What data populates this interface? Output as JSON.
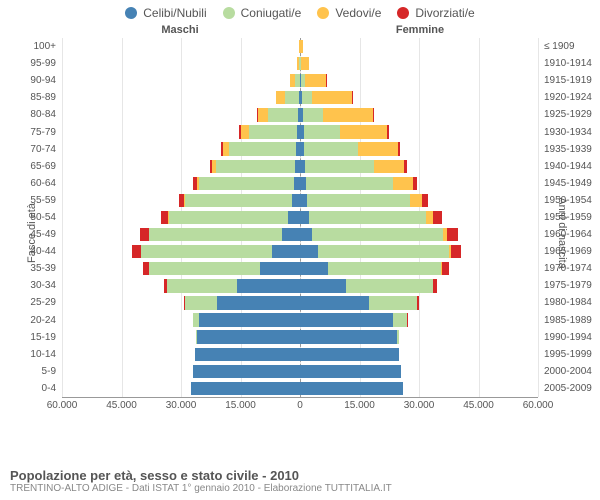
{
  "chart": {
    "type": "population-pyramid",
    "background_color": "#ffffff",
    "grid_color": "#e6e6e6",
    "tick_fontsize": 10,
    "axis_label_fontsize": 11,
    "legend_fontsize": 12,
    "legend": [
      {
        "label": "Celibi/Nubili",
        "color": "#4682b4"
      },
      {
        "label": "Coniugati/e",
        "color": "#b8dca0"
      },
      {
        "label": "Vedovi/e",
        "color": "#ffc34d"
      },
      {
        "label": "Divorziati/e",
        "color": "#d62728"
      }
    ],
    "gender_labels": {
      "left": "Maschi",
      "right": "Femmine"
    },
    "yaxis_left_label": "Fasce di età",
    "yaxis_right_label": "Anni di nascita",
    "xaxis": {
      "max": 60000,
      "ticks": [
        60000,
        45000,
        30000,
        15000,
        0,
        15000,
        30000,
        45000,
        60000
      ],
      "tick_labels": [
        "60.000",
        "45.000",
        "30.000",
        "15.000",
        "0",
        "15.000",
        "30.000",
        "45.000",
        "60.000"
      ]
    },
    "age_groups": [
      "0-4",
      "5-9",
      "10-14",
      "15-19",
      "20-24",
      "25-29",
      "30-34",
      "35-39",
      "40-44",
      "45-49",
      "50-54",
      "55-59",
      "60-64",
      "65-69",
      "70-74",
      "75-79",
      "80-84",
      "85-89",
      "90-94",
      "95-99",
      "100+"
    ],
    "birth_years": [
      "2005-2009",
      "2000-2004",
      "1995-1999",
      "1990-1994",
      "1985-1989",
      "1980-1984",
      "1975-1979",
      "1970-1974",
      "1965-1969",
      "1960-1964",
      "1955-1959",
      "1950-1954",
      "1945-1949",
      "1940-1944",
      "1935-1939",
      "1930-1934",
      "1925-1929",
      "1920-1924",
      "1915-1919",
      "1910-1914",
      "≤ 1909"
    ],
    "data": {
      "male": [
        [
          27500,
          0,
          0,
          0
        ],
        [
          27000,
          0,
          0,
          0
        ],
        [
          26500,
          0,
          0,
          0
        ],
        [
          26000,
          100,
          0,
          0
        ],
        [
          25500,
          1500,
          0,
          50
        ],
        [
          21000,
          8000,
          0,
          200
        ],
        [
          16000,
          17500,
          0,
          700
        ],
        [
          10000,
          28000,
          50,
          1500
        ],
        [
          7000,
          33000,
          100,
          2200
        ],
        [
          4500,
          33500,
          150,
          2300
        ],
        [
          3000,
          30000,
          200,
          1800
        ],
        [
          2000,
          27000,
          300,
          1300
        ],
        [
          1500,
          24000,
          500,
          1000
        ],
        [
          1200,
          20000,
          900,
          700
        ],
        [
          1000,
          17000,
          1500,
          500
        ],
        [
          800,
          12000,
          2200,
          300
        ],
        [
          600,
          7500,
          2600,
          150
        ],
        [
          300,
          3500,
          2200,
          60
        ],
        [
          120,
          1200,
          1200,
          20
        ],
        [
          30,
          300,
          500,
          5
        ],
        [
          10,
          80,
          200,
          2
        ]
      ],
      "female": [
        [
          26000,
          0,
          0,
          0
        ],
        [
          25500,
          0,
          0,
          0
        ],
        [
          25000,
          0,
          0,
          0
        ],
        [
          24500,
          400,
          0,
          0
        ],
        [
          23500,
          3500,
          0,
          100
        ],
        [
          17500,
          12000,
          50,
          400
        ],
        [
          11500,
          22000,
          150,
          1000
        ],
        [
          7000,
          28500,
          300,
          1800
        ],
        [
          4500,
          33000,
          600,
          2600
        ],
        [
          3000,
          33000,
          1000,
          2800
        ],
        [
          2200,
          29500,
          1800,
          2200
        ],
        [
          1700,
          26000,
          3000,
          1600
        ],
        [
          1400,
          22000,
          5000,
          1200
        ],
        [
          1200,
          17500,
          7500,
          900
        ],
        [
          1100,
          13500,
          10000,
          600
        ],
        [
          1000,
          9000,
          12000,
          400
        ],
        [
          800,
          5000,
          12500,
          200
        ],
        [
          500,
          2500,
          10000,
          80
        ],
        [
          250,
          900,
          5500,
          30
        ],
        [
          90,
          250,
          2000,
          10
        ],
        [
          30,
          60,
          600,
          3
        ]
      ]
    },
    "footer_title": "Popolazione per età, sesso e stato civile - 2010",
    "footer_sub": "TRENTINO-ALTO ADIGE - Dati ISTAT 1° gennaio 2010 - Elaborazione TUTTITALIA.IT"
  }
}
